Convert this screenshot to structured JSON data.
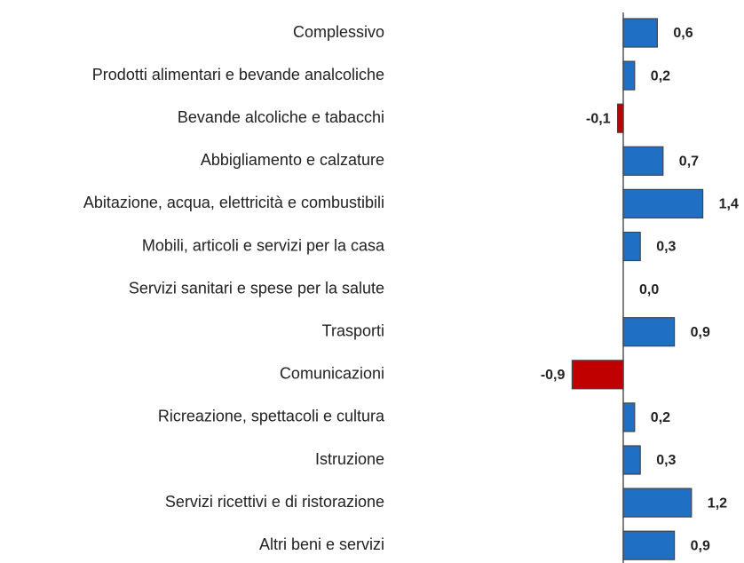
{
  "chart_data": {
    "type": "hbar",
    "categories": [
      "Complessivo",
      "Prodotti alimentari e bevande analcoliche",
      "Bevande alcoliche e tabacchi",
      "Abbigliamento e calzature",
      "Abitazione, acqua, elettricità e combustibili",
      "Mobili, articoli e servizi per la casa",
      "Servizi sanitari e spese per la salute",
      "Trasporti",
      "Comunicazioni",
      "Ricreazione, spettacoli e cultura",
      "Istruzione",
      "Servizi ricettivi e di ristorazione",
      "Altri beni e servizi"
    ],
    "values": [
      0.6,
      0.2,
      -0.1,
      0.7,
      1.4,
      0.3,
      0.0,
      0.9,
      -0.9,
      0.2,
      0.3,
      1.2,
      0.9
    ],
    "value_labels": [
      "0,6",
      "0,2",
      "-0,1",
      "0,7",
      "1,4",
      "0,3",
      "0,0",
      "0,9",
      "-0,9",
      "0,2",
      "0,3",
      "1,2",
      "0,9"
    ],
    "color": "#1f6fc5",
    "negative_color": "#c00000"
  }
}
